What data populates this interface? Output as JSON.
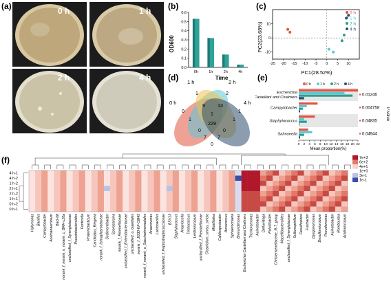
{
  "panels": {
    "a": "(a)",
    "b": "(b)",
    "c": "(c)",
    "d": "(d)",
    "e": "(e)",
    "f": "(f)"
  },
  "plates": [
    {
      "label": "0 h",
      "color": "#b9a37a"
    },
    {
      "label": "1 h",
      "color": "#b7a57e"
    },
    {
      "label": "2 h",
      "color": "#c8c0a4"
    },
    {
      "label": "4 h",
      "color": "#cbc7b5"
    }
  ],
  "chart_data": [
    {
      "panel": "b",
      "type": "bar",
      "categories": [
        "0h",
        "1h",
        "2h",
        "4h"
      ],
      "values": [
        0.53,
        0.32,
        0.14,
        0.03
      ],
      "ylabel": "OD600",
      "xlabel": "Time",
      "ylim": [
        0,
        0.6
      ],
      "yticks": [
        "0.0",
        "0.1",
        "0.2",
        "0.3",
        "0.4",
        "0.5",
        "0.6"
      ],
      "color": "#2ea39a"
    },
    {
      "panel": "c",
      "type": "scatter",
      "xlabel": "PC1(28.52%)",
      "ylabel": "PC2(23.68%)",
      "xlim": [
        -25,
        15
      ],
      "ylim": [
        -15,
        20
      ],
      "xticks": [
        "-25",
        "-20",
        "-15",
        "-10",
        "-5",
        "0",
        "5",
        "10"
      ],
      "yticks": [
        "-10",
        "0",
        "10"
      ],
      "series": [
        {
          "name": "0 h",
          "color": "#e2533f",
          "x": [
            -18,
            -17
          ],
          "y": [
            6,
            4
          ]
        },
        {
          "name": "1 h",
          "color": "#5bc8d8",
          "x": [
            1,
            3
          ],
          "y": [
            -8,
            -10
          ]
        },
        {
          "name": "2 h",
          "color": "#2a9f8e",
          "x": [
            7,
            8
          ],
          "y": [
            -2,
            2
          ]
        },
        {
          "name": "4 h",
          "color": "#2b4d6e",
          "x": [
            9,
            10
          ],
          "y": [
            14,
            16
          ]
        }
      ]
    },
    {
      "panel": "d",
      "type": "venn",
      "sets": [
        {
          "name": "0 h",
          "color": "#e2533f"
        },
        {
          "name": "1 h",
          "color": "#5bc8d8"
        },
        {
          "name": "2 h",
          "color": "#f2c14e"
        },
        {
          "name": "4 h",
          "color": "#2b4d6e"
        }
      ],
      "region_values": [
        "0",
        "1",
        "2",
        "1",
        "1",
        "9",
        "13",
        "1",
        "229",
        "0",
        "7",
        "7",
        "0",
        "1",
        "0"
      ]
    },
    {
      "panel": "e",
      "type": "bar",
      "orientation": "horizontal",
      "categories": [
        "Escherichia  Castellani and Chalmers",
        "Campylobacter",
        "Staphylococcus",
        "Salmonella"
      ],
      "series": [
        {
          "name": "0 h",
          "color": "#e2533f",
          "values": [
            22,
            7,
            6,
            3.5
          ]
        },
        {
          "name": "1 h",
          "color": "#5bc8d8",
          "values": [
            17,
            3,
            2,
            5
          ]
        },
        {
          "name": "2 h",
          "color": "#2a9f8e",
          "values": [
            20,
            1.5,
            3,
            2
          ]
        },
        {
          "name": "4 h",
          "color": "#2b4d6e",
          "values": [
            2,
            0.5,
            0.2,
            0.5
          ]
        }
      ],
      "pvalues": [
        "0.01246",
        "0.004758",
        "0.04835",
        "0.04944"
      ],
      "xlabel": "Mean proportion(%)",
      "xticks": [
        "0",
        "2",
        "4",
        "6",
        "8",
        "10",
        "12",
        "14",
        "16",
        "18",
        "20",
        "22"
      ],
      "xlim": [
        0,
        22
      ],
      "right_label": "P-value"
    },
    {
      "panel": "f",
      "type": "heatmap",
      "rows": [
        "4 h-1",
        "4 h-2",
        "1 h-2",
        "2 h-1",
        "2 h-2",
        "1 h-1",
        "0 h-2",
        "0 h-1"
      ],
      "columns": [
        "Halomonas",
        "Bacillus",
        "Campylobacter",
        "Acetoanaerobium",
        "Bact-08",
        "norank_f_norank_o_norank_c_BRH-c20a",
        "unclassified_f_Synergistaceae",
        "Pseudobacteroides",
        "Fonticella",
        "Proteiniclasticum",
        "Candidatus_Riegeria",
        "norank_f_Izimaplasmataceae",
        "Sedimentibacter",
        "Sporosarcina",
        "norank_f_Rikenellaceae",
        "unclassified_f_Enterobacteriaceae",
        "unclassified_o_Gaiellales",
        "norank_f_JG30-KF-CM45",
        "norank_f_norank_o_Saccharimonadales",
        "Anaerovorax",
        "Lactobacillus",
        "unclassified_f_Peptostreptococcaceae",
        "BSV13",
        "Staphylococcus",
        "Anaerocella",
        "Trichococcus",
        "Lentimicrobium",
        "unclassified_f_Prevotellaceae",
        "Clostridium_sensu_stricto",
        "Mobilitalea",
        "Caldicoprobacter",
        "Aerococcus",
        "Sphaerochaeta",
        "Brevundimonas",
        "Escherichia  Castellani and Chalmers",
        "Trichloromonas",
        "Acinetobacter",
        "Defluviitoga",
        "Paludibacter",
        "Christensenellaceae_R-7_group",
        "Macellibacteroides",
        "unclassified_f_Synergistaceae_2",
        "Sulfurospirillum",
        "Desulfovibrio",
        "Fusibacter",
        "Dysgonomonas",
        "Desulfomicrobium",
        "Pseudomonas",
        "Acinetobacter_2",
        "Romboutsia",
        "Acidimicrobium"
      ],
      "display_columns": [
        "Halomonas",
        "Bacillus",
        "Campylobacter",
        "Acetoanaerobium",
        "Bact-08",
        "norank_f_norank_o_norank_c_BRH-c20a",
        "unclassified_f_Synergistaceae",
        "Pseudobacteroides",
        "Fonticella",
        "Proteiniclasticum",
        "Candidatus_Riegeria",
        "norank_f_Izimaplasmataceae",
        "Sedimentibacter",
        "Sporosarcina",
        "norank_f_Rikenellaceae",
        "unclassified_f_Enterobacteriaceae",
        "unclassified_o_Gaiellales",
        "norank_f_JG30-KF-CM45",
        "norank_f_norank_o_Saccharimonadales",
        "Anaerovorax",
        "Lactobacillus",
        "unclassified_f_Peptostreptococcaceae",
        "BSV13",
        "Staphylococcus",
        "Anaerocella",
        "Trichococcus",
        "Lentimicrobium",
        "unclassified_f_Prevotellaceae",
        "Clostridium_sensu_stricto",
        "Mobilitalea",
        "Caldicoprobacter",
        "Aerococcus",
        "Sphaerochaeta",
        "Brevundimonas",
        "Escherichia  Castellani and Chalmers",
        "Trichloromonas",
        "Acinetobacter",
        "Defluviitoga",
        "Paludibacter",
        "Christensenellaceae_R-7_group",
        "Macellibacteroides",
        "unclassified_f_Synergistaceae",
        "Sulfurospirillum",
        "Desulfovibrio",
        "Fusibacter",
        "Dysgonomonas",
        "Desulfomicrobium",
        "Pseudomonas",
        "Acinetobacter",
        "Romboutsia",
        "Acidimicrobium"
      ],
      "legend": [
        "7e+3",
        "6e+2",
        "4e+1",
        "1e+0",
        "3e-1",
        "1e-1"
      ],
      "legend_colors": [
        "#b2182b",
        "#e07a6e",
        "#f6d4cf",
        "#ffffff",
        "#b8c2e6",
        "#3a4ea8"
      ]
    }
  ]
}
